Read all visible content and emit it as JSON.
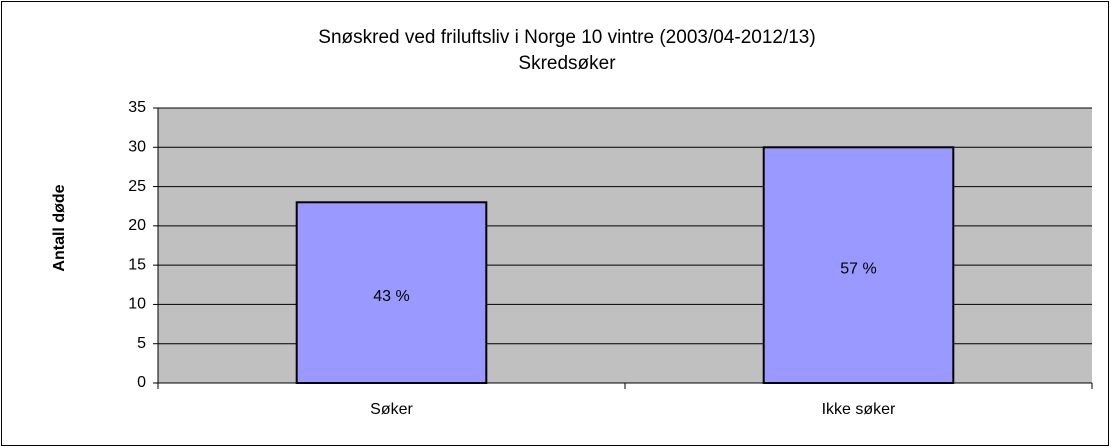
{
  "chart_data": {
    "type": "bar",
    "title": "Snøskred ved friluftsliv i Norge 10 vintre (2003/04-2012/13)",
    "subtitle": "Skredsøker",
    "y_label": "Antall døde",
    "categories": [
      "Søker",
      "Ikke søker"
    ],
    "values": [
      23,
      30
    ],
    "bar_labels": [
      "43 %",
      "57 %"
    ],
    "color": "#9999ff",
    "ylim": [
      0,
      35
    ],
    "yticks": [
      0,
      5,
      10,
      15,
      20,
      25,
      30,
      35
    ],
    "grid": true
  }
}
